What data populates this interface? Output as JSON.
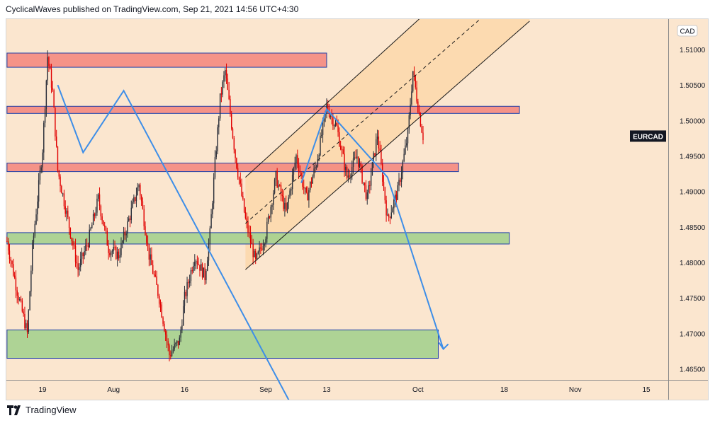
{
  "header": {
    "text": "CyclicalWaves published on TradingView.com, Sep 21, 2021 14:56 UTC+4:30"
  },
  "footer": {
    "brand": "TradingView"
  },
  "colors": {
    "background": "#fbe6cf",
    "candle_up": "#2a2e39",
    "candle_down": "#e00000",
    "resistance_zone": "#f4897f",
    "support_zone": "#a5d08e",
    "zone_border": "#1e3faa",
    "channel_fill": "#fcd5a6",
    "projection_line": "#3d8ee8"
  },
  "chart_data": {
    "type": "candlestick",
    "symbol": "EURCAD",
    "currency": "CAD",
    "current_price": 1.4978,
    "y_ticks": [
      "1.51000",
      "1.50500",
      "1.50000",
      "1.49500",
      "1.49000",
      "1.48500",
      "1.48000",
      "1.47500",
      "1.47000",
      "1.46500"
    ],
    "ylim": [
      1.4625,
      1.5145
    ],
    "x_ticks": [
      {
        "label": "19",
        "date": "2021-07-19"
      },
      {
        "label": "Aug",
        "date": "2021-08-02"
      },
      {
        "label": "16",
        "date": "2021-08-16"
      },
      {
        "label": "Sep",
        "date": "2021-09-01"
      },
      {
        "label": "13",
        "date": "2021-09-13"
      },
      {
        "label": "Oct",
        "date": "2021-10-01"
      },
      {
        "label": "18",
        "date": "2021-10-18"
      },
      {
        "label": "Nov",
        "date": "2021-11-01"
      },
      {
        "label": "15",
        "date": "2021-11-15"
      }
    ],
    "price_waypoints": [
      [
        "2021-07-12",
        1.483
      ],
      [
        "2021-07-14",
        1.476
      ],
      [
        "2021-07-16",
        1.47
      ],
      [
        "2021-07-17",
        1.482
      ],
      [
        "2021-07-19",
        1.496
      ],
      [
        "2021-07-20",
        1.509
      ],
      [
        "2021-07-21",
        1.504
      ],
      [
        "2021-07-22",
        1.493
      ],
      [
        "2021-07-24",
        1.486
      ],
      [
        "2021-07-26",
        1.479
      ],
      [
        "2021-07-28",
        1.483
      ],
      [
        "2021-07-30",
        1.489
      ],
      [
        "2021-08-01",
        1.482
      ],
      [
        "2021-08-03",
        1.481
      ],
      [
        "2021-08-05",
        1.486
      ],
      [
        "2021-08-07",
        1.491
      ],
      [
        "2021-08-09",
        1.481
      ],
      [
        "2021-08-11",
        1.475
      ],
      [
        "2021-08-13",
        1.467
      ],
      [
        "2021-08-15",
        1.469
      ],
      [
        "2021-08-16",
        1.475
      ],
      [
        "2021-08-18",
        1.481
      ],
      [
        "2021-08-20",
        1.478
      ],
      [
        "2021-08-21",
        1.484
      ],
      [
        "2021-08-22",
        1.494
      ],
      [
        "2021-08-23",
        1.503
      ],
      [
        "2021-08-24",
        1.507
      ],
      [
        "2021-08-26",
        1.495
      ],
      [
        "2021-08-28",
        1.486
      ],
      [
        "2021-08-30",
        1.48
      ],
      [
        "2021-09-01",
        1.484
      ],
      [
        "2021-09-03",
        1.492
      ],
      [
        "2021-09-05",
        1.487
      ],
      [
        "2021-09-07",
        1.495
      ],
      [
        "2021-09-09",
        1.489
      ],
      [
        "2021-09-11",
        1.494
      ],
      [
        "2021-09-13",
        1.502
      ],
      [
        "2021-09-15",
        1.499
      ],
      [
        "2021-09-17",
        1.492
      ],
      [
        "2021-09-19",
        1.495
      ],
      [
        "2021-09-21",
        1.489
      ],
      [
        "2021-09-23",
        1.498
      ],
      [
        "2021-09-25",
        1.486
      ],
      [
        "2021-09-27",
        1.49
      ],
      [
        "2021-09-29",
        1.498
      ],
      [
        "2021-09-30",
        1.507
      ],
      [
        "2021-10-01",
        1.502
      ],
      [
        "2021-10-02",
        1.4978
      ]
    ],
    "zones": [
      {
        "kind": "resistance",
        "from": "2021-07-12",
        "to": "2021-09-13",
        "top": 1.5095,
        "bottom": 1.5075
      },
      {
        "kind": "resistance",
        "from": "2021-07-12",
        "to": "2021-10-21",
        "top": 1.502,
        "bottom": 1.501
      },
      {
        "kind": "resistance",
        "from": "2021-07-12",
        "to": "2021-10-09",
        "top": 1.494,
        "bottom": 1.4928
      },
      {
        "kind": "support",
        "from": "2021-07-12",
        "to": "2021-10-19",
        "top": 1.4842,
        "bottom": 1.4826
      },
      {
        "kind": "support",
        "from": "2021-07-12",
        "to": "2021-10-05",
        "top": 1.4705,
        "bottom": 1.4665
      }
    ],
    "channel": {
      "lower": [
        [
          "2021-08-28",
          1.479
        ],
        [
          "2021-10-23",
          1.514
        ]
      ],
      "upper": [
        [
          "2021-08-28",
          1.492
        ],
        [
          "2021-10-10",
          1.52
        ]
      ],
      "mid": [
        [
          "2021-08-28",
          1.4855
        ],
        [
          "2021-10-16",
          1.516
        ]
      ]
    },
    "projections": [
      [
        [
          "2021-07-22",
          1.505
        ],
        [
          "2021-07-27",
          1.4955
        ],
        [
          "2021-08-04",
          1.5042
        ],
        [
          "2021-09-06",
          1.46
        ]
      ],
      [
        [
          "2021-09-08",
          1.4912
        ],
        [
          "2021-09-13",
          1.5016
        ],
        [
          "2021-09-25",
          1.492
        ],
        [
          "2021-10-06",
          1.4678
        ]
      ]
    ]
  }
}
